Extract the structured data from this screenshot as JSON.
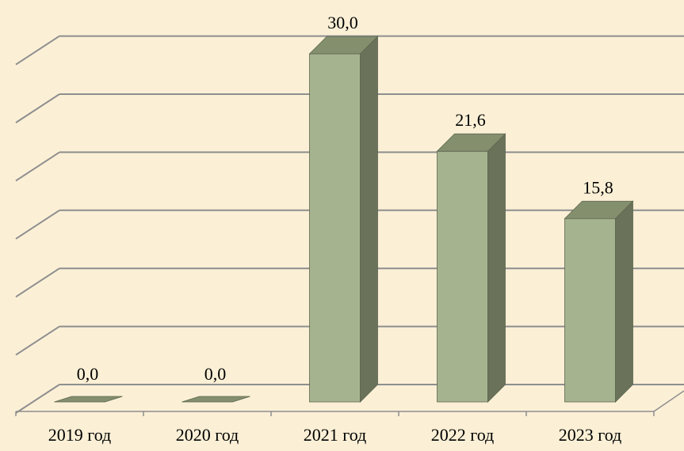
{
  "chart_data": {
    "type": "bar",
    "title": "",
    "xlabel": "",
    "ylabel": "",
    "categories": [
      "2019 год",
      "2020 год",
      "2021 год",
      "2022 год",
      "2023 год"
    ],
    "values": [
      0.0,
      0.0,
      30.0,
      21.6,
      15.8
    ],
    "value_labels": [
      "0,0",
      "0,0",
      "30,0",
      "21,6",
      "15,8"
    ],
    "ylim": [
      0,
      30
    ],
    "grid": true,
    "style": "3d-column",
    "colors": {
      "background": "#FBF0D6",
      "bar_front": "#A6B38F",
      "bar_side": "#6A7359",
      "bar_top": "#848F6E",
      "bar_outline": "#5E6650",
      "grid": "#8E8E8E"
    }
  }
}
